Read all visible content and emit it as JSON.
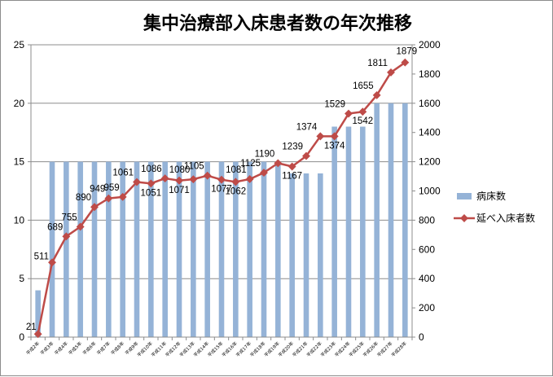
{
  "chart_data": {
    "type": "bar",
    "title": "集中治療部入床患者数の年次推移",
    "categories": [
      "平成2年",
      "平成3年",
      "平成4年",
      "平成5年",
      "平成6年",
      "平成7年",
      "平成8年",
      "平成9年",
      "平成10年",
      "平成11年",
      "平成12年",
      "平成13年",
      "平成14年",
      "平成15年",
      "平成16年",
      "平成17年",
      "平成18年",
      "平成19年",
      "平成20年",
      "平成21年",
      "平成22年",
      "平成23年",
      "平成24年",
      "平成25年",
      "平成26年",
      "平成27年",
      "平成28年"
    ],
    "series": [
      {
        "name": "病床数",
        "type": "bar",
        "axis": "left",
        "color": "#95b3d7",
        "values": [
          4,
          15,
          15,
          15,
          15,
          15,
          15,
          15,
          15,
          15,
          15,
          15,
          15,
          15,
          15,
          15,
          15,
          15,
          14,
          14,
          14,
          18,
          18,
          18,
          20,
          20,
          20
        ]
      },
      {
        "name": "延べ入床者数",
        "type": "line",
        "axis": "right",
        "color": "#be4b48",
        "values": [
          21,
          511,
          689,
          755,
          890,
          949,
          959,
          1061,
          1051,
          1086,
          1071,
          1080,
          1105,
          1077,
          1062,
          1081,
          1125,
          1190,
          1167,
          1239,
          1374,
          1374,
          1529,
          1542,
          1655,
          1811,
          1879
        ]
      }
    ],
    "ylim_left": [
      0,
      25
    ],
    "yticks_left": [
      0,
      5,
      10,
      15,
      20,
      25
    ],
    "ylim_right": [
      0,
      2000
    ],
    "yticks_right": [
      0,
      200,
      400,
      600,
      800,
      1000,
      1200,
      1400,
      1600,
      1800,
      2000
    ],
    "grid": true,
    "legend": "right"
  }
}
